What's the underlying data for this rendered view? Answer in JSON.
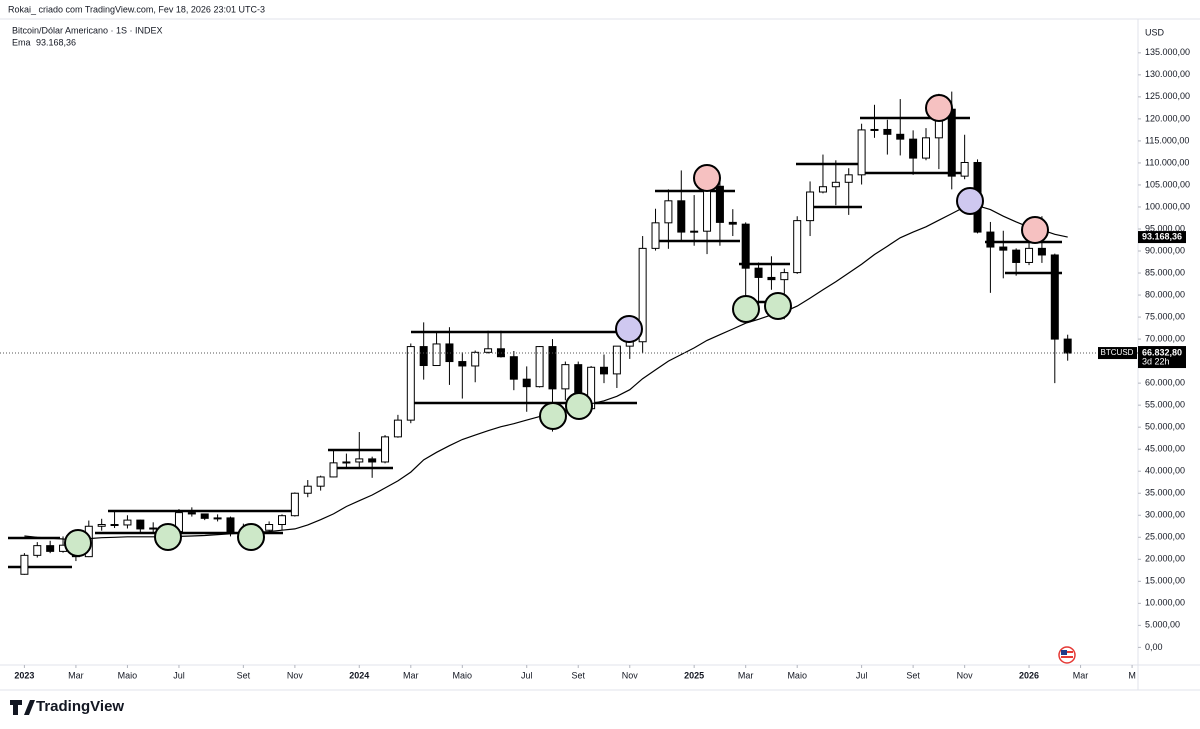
{
  "header": {
    "author_line": "Rokai_ criado com TradingView.com, Fev 18, 2026 23:01 UTC-3",
    "symbol": "Bitcoin/Dólar Americano · 1S · INDEX",
    "brand": "TradingView"
  },
  "chart_data": {
    "type": "candlestick",
    "currency": "USD",
    "categories": [
      "2023",
      null,
      null,
      null,
      "Mar",
      null,
      null,
      null,
      "Maio",
      null,
      null,
      null,
      "Jul",
      null,
      null,
      null,
      null,
      "Set",
      null,
      null,
      null,
      "Nov",
      null,
      null,
      null,
      null,
      "2024",
      null,
      null,
      null,
      "Mar",
      null,
      null,
      null,
      "Maio",
      null,
      null,
      null,
      null,
      "Jul",
      null,
      null,
      null,
      "Set",
      null,
      null,
      null,
      "Nov",
      null,
      null,
      null,
      null,
      "2025",
      null,
      null,
      null,
      "Mar",
      null,
      null,
      null,
      "Maio",
      null,
      null,
      null,
      null,
      "Jul",
      null,
      null,
      null,
      "Set",
      null,
      null,
      null,
      "Nov",
      null,
      null,
      null,
      null,
      "2026",
      null,
      null,
      null,
      "Mar",
      null,
      null,
      null,
      "M"
    ],
    "series": [
      {
        "name": "BTCUSD",
        "up_color": "#ffffff",
        "down_color": "#000000",
        "wick_color": "#000000",
        "countdown": "3d 22h",
        "last_label": "66.832,80",
        "open": [
          16600,
          20900,
          23100,
          21800,
          23200,
          20600,
          27500,
          27900,
          27800,
          28900,
          26900,
          27100,
          26300,
          30600,
          30300,
          29300,
          29400,
          26000,
          25900,
          26600,
          27900,
          29900,
          35000,
          36600,
          38700,
          41900,
          42100,
          42800,
          42100,
          47800,
          51600,
          68300,
          64000,
          68900,
          64900,
          63900,
          67000,
          67800,
          66000,
          60900,
          59200,
          68300,
          58700,
          64200,
          54200,
          63600,
          62100,
          68400,
          69400,
          90600,
          96400,
          101400,
          94300,
          94500,
          104700,
          96500,
          96100,
          86100,
          84000,
          83500,
          85100,
          96900,
          103400,
          104600,
          105600,
          107300,
          117500,
          117600,
          116500,
          115400,
          111100,
          115700,
          122200,
          107000,
          110100,
          94300,
          90900,
          90200,
          87400,
          90600,
          89100,
          70000,
          null,
          null,
          null,
          null,
          null
        ],
        "high": [
          21400,
          23900,
          24200,
          25200,
          23900,
          28800,
          29200,
          31000,
          30000,
          29000,
          28400,
          27400,
          31400,
          31800,
          30400,
          30200,
          29700,
          28100,
          27500,
          28600,
          30200,
          35200,
          38000,
          39000,
          44700,
          44000,
          48900,
          43300,
          48200,
          52800,
          69000,
          73800,
          71700,
          72700,
          67000,
          67400,
          71900,
          71900,
          67300,
          63800,
          68400,
          70000,
          64900,
          64900,
          63900,
          66500,
          68400,
          73600,
          93400,
          99600,
          104000,
          108300,
          102700,
          109600,
          106400,
          99500,
          96500,
          87400,
          88800,
          86000,
          97900,
          105800,
          111900,
          110600,
          108800,
          118900,
          123200,
          119800,
          124500,
          117400,
          117900,
          125700,
          126200,
          116400,
          110800,
          96600,
          94600,
          90600,
          94800,
          97900,
          89400,
          71000,
          null,
          null,
          null,
          null,
          null
        ],
        "low": [
          16500,
          20400,
          21400,
          21500,
          19600,
          20500,
          26500,
          27100,
          27000,
          25800,
          26100,
          24800,
          26300,
          29700,
          28900,
          28600,
          25200,
          25400,
          24900,
          26000,
          26600,
          29700,
          34100,
          35600,
          38600,
          40500,
          40700,
          38500,
          41800,
          47600,
          50900,
          60800,
          64000,
          59600,
          56500,
          60200,
          66700,
          65800,
          58400,
          53500,
          59000,
          49000,
          56100,
          52600,
          54000,
          60000,
          58900,
          65500,
          66800,
          90100,
          90500,
          92200,
          91200,
          89300,
          91200,
          93400,
          78200,
          76600,
          81200,
          74500,
          84800,
          93400,
          103100,
          100400,
          98200,
          105100,
          115700,
          111900,
          111700,
          107300,
          110600,
          108600,
          104000,
          106300,
          94000,
          80500,
          83800,
          84400,
          86800,
          87300,
          60000,
          65100,
          null,
          null,
          null,
          null,
          null
        ],
        "close": [
          20900,
          23100,
          21800,
          23200,
          20600,
          27500,
          27900,
          27800,
          28900,
          26900,
          27100,
          26300,
          30600,
          30300,
          29300,
          29400,
          26000,
          25900,
          26600,
          27900,
          29900,
          35000,
          36600,
          38700,
          41900,
          42100,
          42800,
          42100,
          47800,
          51600,
          68300,
          64000,
          68900,
          64900,
          63900,
          67000,
          67800,
          66000,
          60900,
          59200,
          68300,
          58700,
          64200,
          54200,
          63600,
          62100,
          68400,
          69400,
          90600,
          96400,
          101400,
          94300,
          94500,
          104700,
          96500,
          96100,
          86100,
          84000,
          83500,
          85100,
          96900,
          103400,
          104600,
          105600,
          107300,
          117500,
          117600,
          116500,
          115400,
          111100,
          115700,
          122200,
          107000,
          110100,
          94300,
          90900,
          90200,
          87400,
          90600,
          89100,
          70000,
          66832.8,
          null,
          null,
          null,
          null,
          null
        ]
      },
      {
        "name": "Ema",
        "type": "line",
        "color": "#000000",
        "last_label": "93.168,36",
        "values": [
          25300,
          25000,
          24800,
          24600,
          24500,
          24700,
          24900,
          25000,
          25100,
          25100,
          25100,
          25100,
          25200,
          25300,
          25400,
          25600,
          25800,
          26000,
          26100,
          26300,
          26600,
          26900,
          27800,
          29000,
          30300,
          32000,
          33300,
          34600,
          36200,
          37800,
          39800,
          42600,
          44300,
          45800,
          47200,
          48200,
          49200,
          50100,
          50800,
          51600,
          52400,
          53200,
          53800,
          54400,
          55300,
          56000,
          57000,
          58500,
          61000,
          63000,
          65000,
          66500,
          68000,
          69700,
          71000,
          72300,
          73600,
          74500,
          75500,
          76200,
          77500,
          79300,
          81200,
          83000,
          85000,
          87000,
          89200,
          91100,
          93000,
          94300,
          95500,
          97000,
          98500,
          100000,
          100300,
          99400,
          97900,
          96600,
          95400,
          94800,
          93800,
          93168.36,
          null,
          null,
          null,
          null,
          null
        ]
      }
    ],
    "ylim": [
      -4000,
      142000
    ],
    "yticks": [
      {
        "value": 0,
        "label": "0,00"
      },
      {
        "value": 5000,
        "label": "5.000,00"
      },
      {
        "value": 10000,
        "label": "10.000,00"
      },
      {
        "value": 15000,
        "label": "15.000,00"
      },
      {
        "value": 20000,
        "label": "20.000,00"
      },
      {
        "value": 25000,
        "label": "25.000,00"
      },
      {
        "value": 30000,
        "label": "30.000,00"
      },
      {
        "value": 35000,
        "label": "35.000,00"
      },
      {
        "value": 40000,
        "label": "40.000,00"
      },
      {
        "value": 45000,
        "label": "45.000,00"
      },
      {
        "value": 50000,
        "label": "50.000,00"
      },
      {
        "value": 55000,
        "label": "55.000,00"
      },
      {
        "value": 60000,
        "label": "60.000,00"
      },
      {
        "value": 65000,
        "label": "65.000,00"
      },
      {
        "value": 70000,
        "label": "70.000,00"
      },
      {
        "value": 75000,
        "label": "75.000,00"
      },
      {
        "value": 80000,
        "label": "80.000,00"
      },
      {
        "value": 85000,
        "label": "85.000,00"
      },
      {
        "value": 90000,
        "label": "90.000,00"
      },
      {
        "value": 95000,
        "label": "95.000,00"
      },
      {
        "value": 100000,
        "label": "100.000,00"
      },
      {
        "value": 105000,
        "label": "105.000,00"
      },
      {
        "value": 110000,
        "label": "110.000,00"
      },
      {
        "value": 115000,
        "label": "115.000,00"
      },
      {
        "value": 120000,
        "label": "120.000,00"
      },
      {
        "value": 125000,
        "label": "125.000,00"
      },
      {
        "value": 130000,
        "label": "130.000,00"
      },
      {
        "value": 135000,
        "label": "135.000,00"
      }
    ],
    "grid": false
  }
}
